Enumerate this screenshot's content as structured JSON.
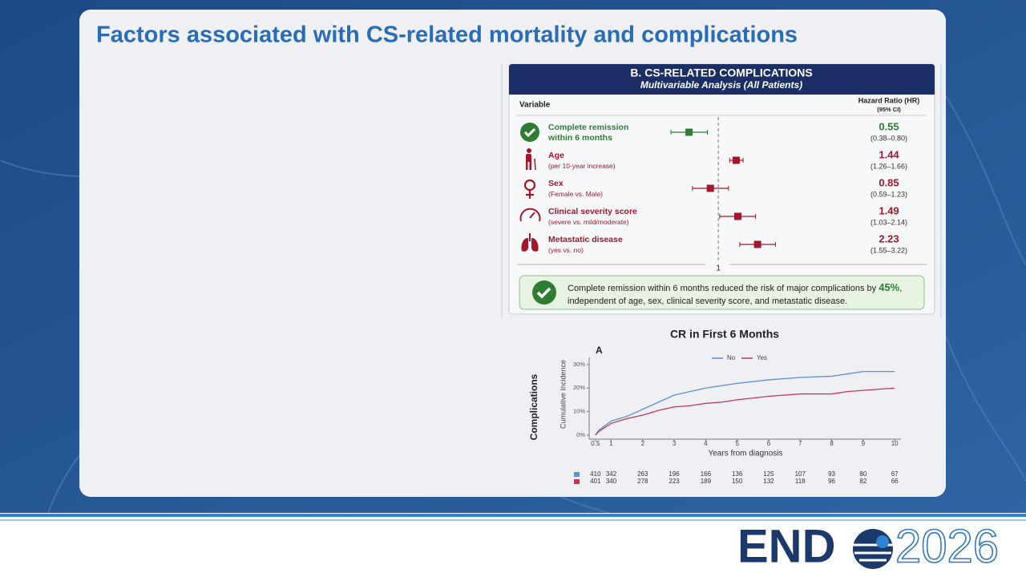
{
  "title": "Factors associated with CS-related mortality and complications",
  "footer": {
    "brand": "END",
    "year": "2026"
  },
  "chart_data": [
    {
      "type": "forest",
      "title": "B. CS-RELATED COMPLICATIONS",
      "subtitle": "Multivariable Analysis (All Patients)",
      "variable_header": "Variable",
      "hr_header": "Hazard Ratio (HR)",
      "ci_header": "(95% CI)",
      "categories": [
        "Complete remission within 6 months",
        "Age",
        "Sex",
        "Clinical severity score",
        "Metastatic disease"
      ],
      "details": [
        null,
        "(per 10-year increase)",
        "(Female vs. Male)",
        "(severe vs. mild/moderate)",
        "(yes vs. no)"
      ],
      "values": [
        0.55,
        1.44,
        0.85,
        1.49,
        2.23
      ],
      "lower": [
        0.38,
        1.26,
        0.59,
        1.03,
        1.55
      ],
      "upper": [
        0.8,
        1.66,
        1.23,
        2.14,
        3.22
      ],
      "ci_labels": [
        "(0.38–0.80)",
        "(1.26–1.66)",
        "(0.59–1.23)",
        "(1.03–2.14)",
        "(1.55–3.22)"
      ],
      "colors": [
        "#2e7d32",
        "#a3172b",
        "#a3172b",
        "#a3172b",
        "#a3172b"
      ],
      "log_x": true,
      "xlim": [
        0.35,
        4.5
      ],
      "xticks": [
        1
      ],
      "note": {
        "text": "Complete remission within 6 months reduced the risk of major complications by ",
        "highlight": "45%",
        "tail": ", independent of age, sex, clinical severity score, and metastatic disease."
      }
    },
    {
      "type": "line",
      "title": "CR in First 6 Months",
      "panel_label": "A",
      "row_label": "Complications",
      "y_label": "Cumulative Incidence",
      "x_label": "Years from diagnosis",
      "x": [
        0.5,
        0.6,
        1,
        1.5,
        2,
        2.5,
        3,
        3.5,
        4,
        4.5,
        5,
        6,
        7,
        8,
        8.5,
        9,
        10
      ],
      "series": [
        {
          "name": "No",
          "color": "#5b8fd6",
          "values": [
            0,
            2,
            6,
            8,
            11,
            14,
            17,
            18.5,
            20,
            21,
            22,
            23.5,
            24.5,
            25,
            26,
            27,
            27
          ],
          "at_risk": [
            410,
            342,
            263,
            196,
            166,
            136,
            125,
            107,
            93,
            80,
            67
          ]
        },
        {
          "name": "Yes",
          "color": "#c0395a",
          "values": [
            0,
            1.5,
            5,
            7,
            8.5,
            10.5,
            12,
            12.5,
            13.5,
            14,
            15,
            16.5,
            17.5,
            17.5,
            18.5,
            19,
            20
          ],
          "at_risk": [
            401,
            340,
            278,
            223,
            189,
            150,
            132,
            118,
            96,
            82,
            66
          ]
        }
      ],
      "xlim": [
        0.3,
        10.2
      ],
      "xticks": [
        0.5,
        1,
        2,
        3,
        4,
        5,
        6,
        7,
        8,
        9,
        10
      ],
      "ylim": [
        0,
        33
      ],
      "yticks": [
        {
          "value": 0,
          "label": "0%"
        },
        {
          "value": 10,
          "label": "10%"
        },
        {
          "value": 20,
          "label": "20%"
        },
        {
          "value": 30,
          "label": "30%"
        }
      ]
    }
  ]
}
